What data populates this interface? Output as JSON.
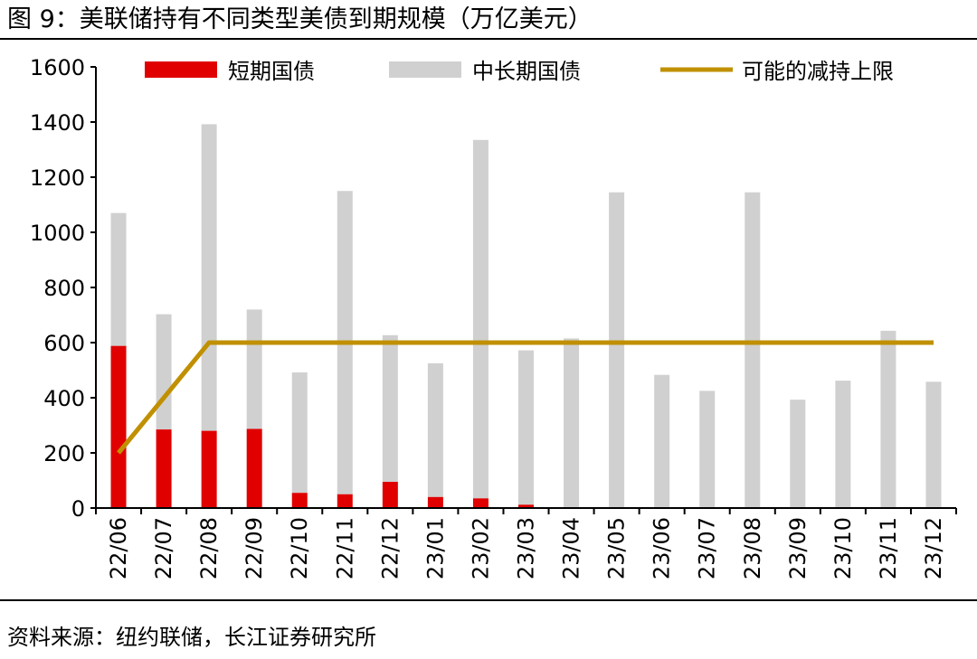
{
  "figure": {
    "title": "图 9：美联储持有不同类型美债到期规模（万亿美元）",
    "source": "资料来源：纽约联储，长江证券研究所"
  },
  "colors": {
    "short_term": "#e00000",
    "long_term": "#d0d0d0",
    "cap_line": "#c09000",
    "axis": "#000000"
  },
  "chart_data": {
    "type": "bar",
    "stacked": true,
    "title": "美联储持有不同类型美债到期规模（万亿美元）",
    "xlabel": "",
    "ylabel": "",
    "ylim": [
      0,
      1600
    ],
    "yticks": [
      0,
      200,
      400,
      600,
      800,
      1000,
      1200,
      1400,
      1600
    ],
    "categories": [
      "22/06",
      "22/07",
      "22/08",
      "22/09",
      "22/10",
      "22/11",
      "22/12",
      "23/01",
      "23/02",
      "23/03",
      "23/04",
      "23/05",
      "23/06",
      "23/07",
      "23/08",
      "23/09",
      "23/10",
      "23/11",
      "23/12"
    ],
    "series": [
      {
        "name": "短期国债",
        "kind": "bar",
        "values": [
          588,
          285,
          280,
          287,
          55,
          50,
          95,
          40,
          35,
          12,
          0,
          0,
          0,
          0,
          0,
          0,
          0,
          0,
          0
        ]
      },
      {
        "name": "中长期国债",
        "kind": "bar",
        "values": [
          482,
          418,
          1112,
          433,
          437,
          1100,
          532,
          485,
          1300,
          560,
          615,
          1145,
          483,
          425,
          1145,
          393,
          462,
          643,
          458
        ]
      },
      {
        "name": "可能的减持上限",
        "kind": "line",
        "values": [
          200,
          400,
          600,
          600,
          600,
          600,
          600,
          600,
          600,
          600,
          600,
          600,
          600,
          600,
          600,
          600,
          600,
          600,
          600
        ]
      }
    ],
    "legend_position": "top"
  }
}
